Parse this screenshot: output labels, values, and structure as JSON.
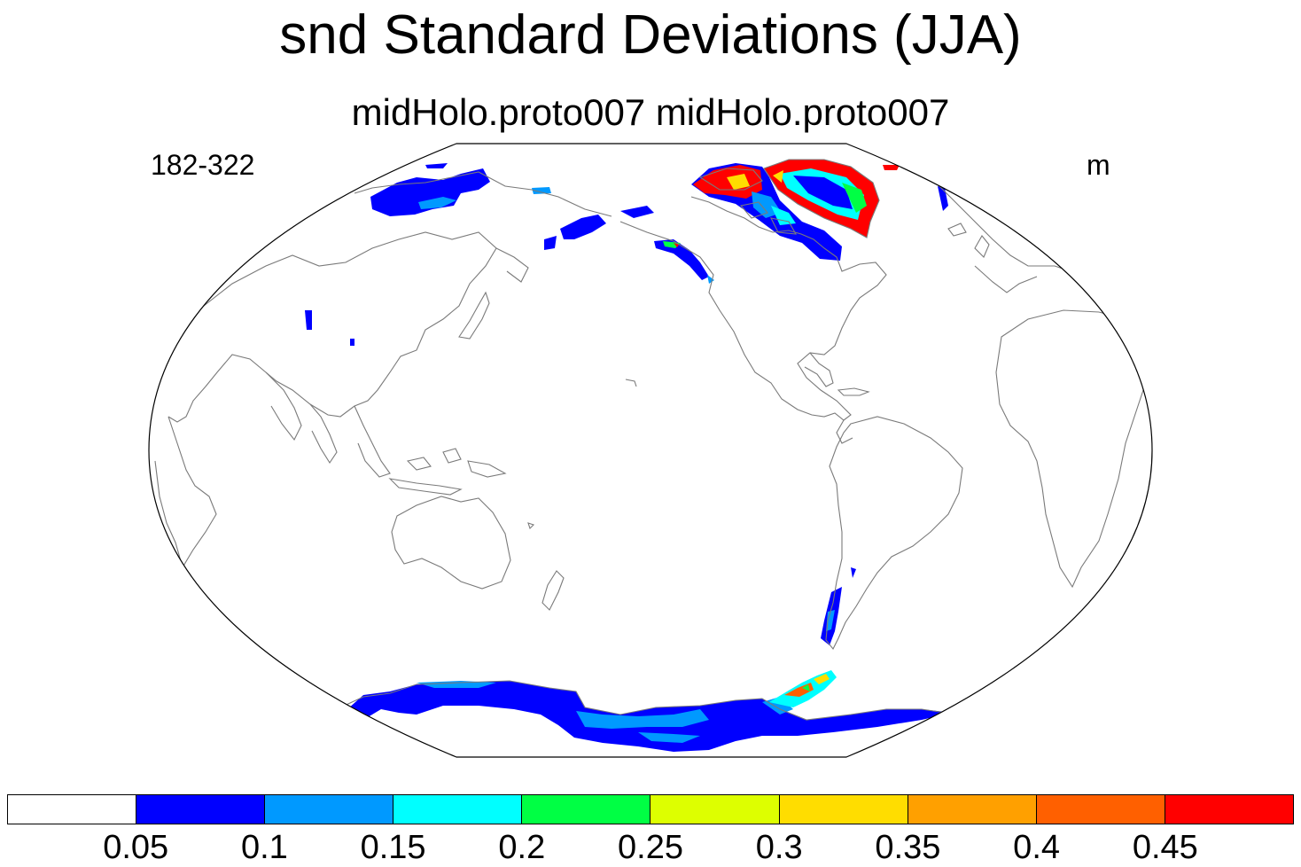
{
  "title": "snd Standard Deviations (JJA)",
  "subtitle": "midHolo.proto007  midHolo.proto007",
  "left_label": "182-322",
  "right_label": "m",
  "colorbar": {
    "colors": [
      "#ffffff",
      "#0000ff",
      "#0099ff",
      "#00ffff",
      "#00ff44",
      "#ddff00",
      "#ffdd00",
      "#ffa000",
      "#ff6000",
      "#ff0000"
    ],
    "ticks": [
      "0.05",
      "0.1",
      "0.15",
      "0.2",
      "0.25",
      "0.3",
      "0.35",
      "0.4",
      "0.45"
    ]
  },
  "map": {
    "projection": "robinson-like",
    "center_longitude": "pacific",
    "coastline_color": "#7a7a7a",
    "frame_color": "#000000",
    "snow_regions": [
      "northern-siberia",
      "arctic-islands",
      "alaska-coast",
      "canadian-arctic-archipelago",
      "greenland",
      "tibetan-plateau",
      "patagonia",
      "antarctic-peninsula",
      "antarctica-coast"
    ]
  }
}
